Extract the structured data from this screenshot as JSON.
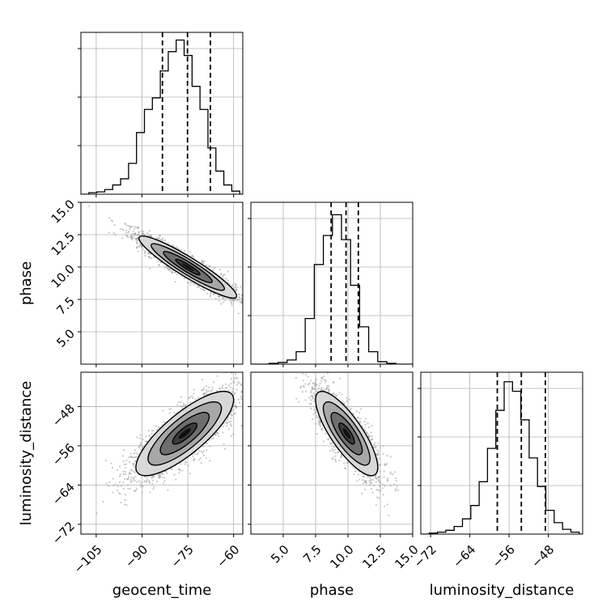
{
  "chart_data": {
    "type": "corner",
    "parameters": [
      "geocent_time",
      "phase",
      "luminosity_distance"
    ],
    "axis_labels": {
      "x": [
        "geocent_time",
        "phase",
        "luminosity_distance"
      ],
      "y": [
        "",
        "phase",
        "luminosity_distance"
      ]
    },
    "ranges": {
      "geocent_time": [
        -110,
        -57
      ],
      "phase": [
        2.5,
        15.0
      ],
      "luminosity_distance": [
        -74,
        -41
      ]
    },
    "ticks": {
      "geocent_time": [
        -105,
        -90,
        -75,
        -60
      ],
      "phase": [
        5.0,
        7.5,
        10.0,
        12.5,
        15.0
      ],
      "luminosity_distance": [
        -72,
        -64,
        -56,
        -48
      ]
    },
    "tick_labels": {
      "geocent_time": [
        "−105",
        "−90",
        "−75",
        "−60"
      ],
      "phase": [
        "5.0",
        "7.5",
        "10.0",
        "12.5",
        "15.0"
      ],
      "luminosity_distance": [
        "−72",
        "−64",
        "−56",
        "−48"
      ],
      "phase_y": [
        "5.0",
        "7.5",
        "10.0",
        "12.5",
        "15.0"
      ],
      "luminosity_distance_y": [
        "−72",
        "−64",
        "−56",
        "−48"
      ]
    },
    "grid": true,
    "histograms": {
      "geocent_time": {
        "bin_edges": [
          -110,
          -107.4,
          -104.8,
          -102.2,
          -99.6,
          -97,
          -94.4,
          -91.8,
          -89.2,
          -86.6,
          -84,
          -81.4,
          -78.8,
          -76.2,
          -73.6,
          -71,
          -68.4,
          -65.8,
          -63.2,
          -60.6,
          -58,
          -57
        ],
        "counts": [
          0,
          2,
          3,
          6,
          12,
          20,
          40,
          80,
          110,
          125,
          160,
          185,
          200,
          180,
          140,
          110,
          60,
          30,
          12,
          4,
          0
        ],
        "quantiles": [
          -83.3,
          -75.1,
          -67.6
        ],
        "ymax": 210
      },
      "phase": {
        "bin_edges": [
          2.5,
          3.2,
          3.9,
          4.6,
          5.3,
          6.0,
          6.7,
          7.4,
          8.1,
          8.8,
          9.5,
          10.2,
          10.9,
          11.6,
          12.3,
          13.0,
          13.7,
          14.4,
          15.0
        ],
        "counts": [
          0,
          0,
          1,
          2,
          5,
          15,
          55,
          120,
          155,
          180,
          150,
          95,
          45,
          15,
          3,
          1,
          0,
          0
        ],
        "quantiles": [
          8.7,
          9.85,
          10.8
        ],
        "ymax": 195
      },
      "luminosity_distance": {
        "bin_edges": [
          -74,
          -72.3,
          -70.6,
          -68.9,
          -67.2,
          -65.5,
          -63.8,
          -62.1,
          -60.4,
          -58.7,
          -57.0,
          -55.3,
          -53.6,
          -51.9,
          -50.2,
          -48.5,
          -46.8,
          -45.1,
          -43.4,
          -41.7,
          -41
        ],
        "counts": [
          0,
          1,
          2,
          4,
          8,
          16,
          30,
          55,
          90,
          130,
          160,
          150,
          120,
          80,
          50,
          25,
          12,
          5,
          2,
          0
        ],
        "quantiles": [
          -58.4,
          -53.5,
          -48.6
        ],
        "ymax": 170
      }
    },
    "pairs": [
      {
        "x": "geocent_time",
        "y": "phase",
        "mean": [
          -75,
          10.0
        ],
        "sd": [
          8.0,
          1.2
        ],
        "corr": -0.93,
        "n": 2600,
        "levels": [
          0.5,
          1.0,
          1.5,
          2.0
        ]
      },
      {
        "x": "geocent_time",
        "y": "luminosity_distance",
        "mean": [
          -76,
          -53.5
        ],
        "sd": [
          8.0,
          4.3
        ],
        "corr": 0.8,
        "n": 2600,
        "levels": [
          0.5,
          1.0,
          1.5,
          2.0
        ]
      },
      {
        "x": "phase",
        "y": "luminosity_distance",
        "mean": [
          9.9,
          -53.5
        ],
        "sd": [
          1.2,
          4.3
        ],
        "corr": -0.8,
        "n": 2600,
        "levels": [
          0.5,
          1.0,
          1.5,
          2.0
        ]
      }
    ],
    "colors": {
      "line": "#000000",
      "points": "#9a9a9a",
      "grid": "#b0b0b0",
      "fill_levels": [
        "#3c3c3c",
        "#6e6e6e",
        "#a8a8a8",
        "#d8d8d8"
      ]
    }
  }
}
